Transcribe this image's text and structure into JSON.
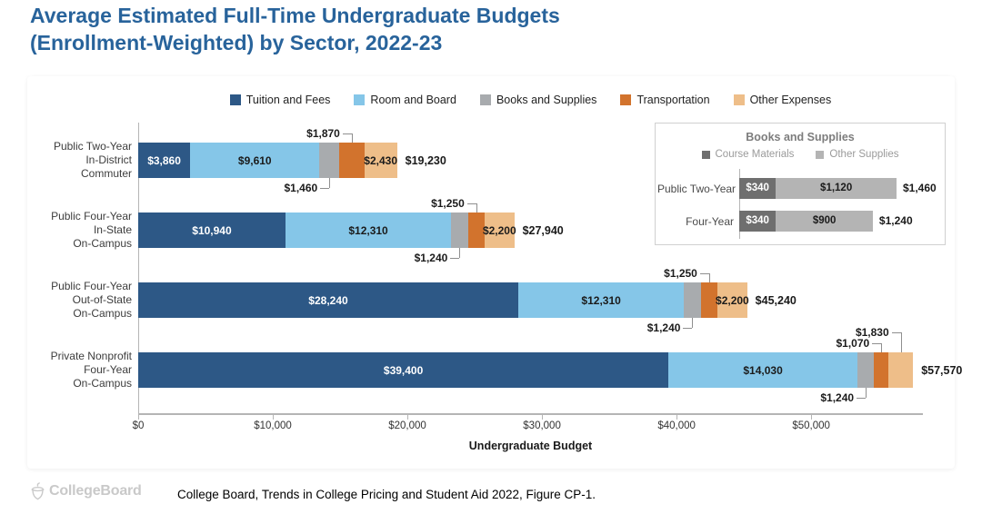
{
  "page": {
    "title_line1": "Average Estimated Full-Time Undergraduate Budgets",
    "title_line2": "(Enrollment-Weighted) by Sector, 2022-23",
    "source": "College Board, Trends in College Pricing and Student Aid 2022, Figure CP-1.",
    "logo_text": "CollegeBoard"
  },
  "colors": {
    "title_blue": "#28639b",
    "axis_gray": "#b5b5b5",
    "callout_line": "#8f8f8f",
    "text_dark": "#1b1b1b"
  },
  "chart_data": [
    {
      "type": "bar",
      "orientation": "horizontal",
      "stacked": true,
      "title": "Average Estimated Full-Time Undergraduate Budgets (Enrollment-Weighted) by Sector, 2022-23",
      "xlabel": "Undergraduate Budget",
      "xlim": [
        0,
        58300
      ],
      "legend_position": "top",
      "grid": false,
      "x_ticks": [
        {
          "value": 0,
          "label": "$0"
        },
        {
          "value": 10000,
          "label": "$10,000"
        },
        {
          "value": 20000,
          "label": "$20,000"
        },
        {
          "value": 30000,
          "label": "$30,000"
        },
        {
          "value": 40000,
          "label": "$40,000"
        },
        {
          "value": 50000,
          "label": "$50,000"
        }
      ],
      "categories": [
        "Public Two-Year\nIn-District\nCommuter",
        "Public Four-Year\nIn-State\nOn-Campus",
        "Public Four-Year\nOut-of-State\nOn-Campus",
        "Private Nonprofit\nFour-Year\nOn-Campus"
      ],
      "series": [
        {
          "name": "Tuition and Fees",
          "color": "#2d5886",
          "values": [
            3860,
            10940,
            28240,
            39400
          ],
          "label_style": "inside-light"
        },
        {
          "name": "Room and Board",
          "color": "#85c6e8",
          "values": [
            9610,
            12310,
            12310,
            14030
          ],
          "label_style": "inside-dark"
        },
        {
          "name": "Books and Supplies",
          "color": "#a8abae",
          "values": [
            1460,
            1240,
            1240,
            1240
          ],
          "label_style": "callout-below"
        },
        {
          "name": "Transportation",
          "color": "#d2732d",
          "values": [
            1870,
            1250,
            1250,
            1070
          ],
          "label_style": "callout-above"
        },
        {
          "name": "Other Expenses",
          "color": "#eebe89",
          "values": [
            2430,
            2200,
            2200,
            1830
          ],
          "label_style": "inside-dark",
          "label_style_overrides": {
            "3": "callout-above-far"
          }
        }
      ],
      "totals": [
        19230,
        27940,
        45240,
        57570
      ]
    },
    {
      "type": "bar",
      "orientation": "horizontal",
      "stacked": true,
      "title": "Books and Supplies",
      "xlim": [
        0,
        1500
      ],
      "legend_position": "top",
      "categories": [
        "Public Two-Year",
        "Four-Year"
      ],
      "series": [
        {
          "name": "Course Materials",
          "color": "#6f6f6f",
          "values": [
            340,
            340
          ]
        },
        {
          "name": "Other Supplies",
          "color": "#b4b4b4",
          "values": [
            1120,
            900
          ]
        }
      ],
      "totals": [
        1460,
        1240
      ]
    }
  ]
}
